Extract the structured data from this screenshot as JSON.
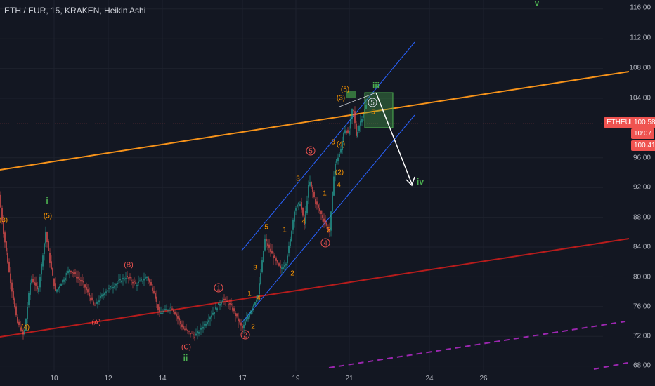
{
  "title": "ETH / EUR, 15, KRAKEN, Heikin Ashi",
  "y_axis": [
    {
      "v": 116,
      "label": "116.00"
    },
    {
      "v": 112,
      "label": "112.00"
    },
    {
      "v": 108,
      "label": "108.00"
    },
    {
      "v": 104,
      "label": "104.00"
    },
    {
      "v": 96,
      "label": "96.00"
    },
    {
      "v": 92,
      "label": "92.00"
    },
    {
      "v": 88,
      "label": "88.00"
    },
    {
      "v": 84,
      "label": "84.00"
    },
    {
      "v": 80,
      "label": "80.00"
    },
    {
      "v": 76,
      "label": "76.00"
    },
    {
      "v": 72,
      "label": "72.00"
    },
    {
      "v": 68,
      "label": "68.00"
    }
  ],
  "x_axis": [
    "10",
    "12",
    "14",
    "17",
    "19",
    "21",
    "24",
    "26"
  ],
  "symbol_badge": "ETHEUR",
  "price_badge": "100.58",
  "countdown_badge": "10:07",
  "low_badge": "100.41",
  "colors": {
    "background": "#131722",
    "up": "#26a69a",
    "down": "#ef5350",
    "orange_line": "#f7931a",
    "red_line": "#b71c1c",
    "channel": "#2962ff",
    "green_wave": "#4caf50",
    "orange_wave": "#ff9800",
    "red_wave": "#e91e63",
    "purple_line": "#9c27b0"
  },
  "wave_labels": {
    "l1": "(3)",
    "l2": "(5)",
    "l3": "i",
    "l4": "(4)",
    "l5": "(A)",
    "l6": "(B)",
    "l7": "(C)",
    "l8": "ii",
    "l9": "1",
    "l10": "2",
    "l11": "1",
    "l12": "2",
    "l13": "3",
    "l14": "4",
    "l15": "5",
    "l16": "1",
    "l17": "3",
    "l18": "4",
    "l19": "5",
    "l20": "1",
    "l21": "2",
    "l22": "3",
    "l23": "4",
    "l24": "(3)",
    "l25": "(4)",
    "l26": "(2)",
    "l27": "(5)",
    "l28": "iii",
    "l29": "5",
    "l30": "5",
    "l31": "iv",
    "l32": "v",
    "l33": "2",
    "l34": "3",
    "l35": "4",
    "l36": "1"
  }
}
